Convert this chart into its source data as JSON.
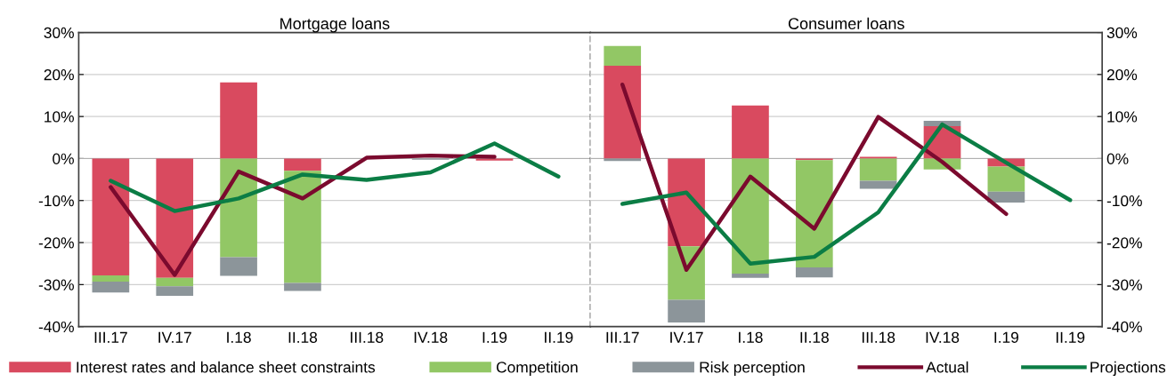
{
  "chart_data": [
    {
      "type": "bar",
      "title": "Mortgage loans",
      "stacked": true,
      "grid": "y",
      "legend": "bottom",
      "marker": "none",
      "line_style": "solid",
      "categories": [
        "III.17",
        "IV.17",
        "I.18",
        "II.18",
        "III.18",
        "IV.18",
        "I.19",
        "II.19"
      ],
      "ylim": [
        -40,
        30
      ],
      "yticks": [
        {
          "value": -40,
          "label": "-40%"
        },
        {
          "value": -30,
          "label": "-30%"
        },
        {
          "value": -20,
          "label": "-20%"
        },
        {
          "value": -10,
          "label": "-10%"
        },
        {
          "value": 0,
          "label": "0%"
        },
        {
          "value": 10,
          "label": "10%"
        },
        {
          "value": 20,
          "label": "20%"
        },
        {
          "value": 30,
          "label": "30%"
        }
      ],
      "series": [
        {
          "name": "Interest rates and balance sheet constraints",
          "color": "#d94a5f",
          "values": [
            -27.8,
            -28.4,
            18.1,
            -2.9,
            null,
            null,
            -0.5,
            null
          ]
        },
        {
          "name": "Competition",
          "color": "#92c765",
          "values": [
            -1.5,
            -2.0,
            -23.5,
            -26.7,
            null,
            null,
            null,
            null
          ]
        },
        {
          "name": "Risk perception",
          "color": "#8c959a",
          "values": [
            -2.6,
            -2.3,
            -4.4,
            -1.9,
            null,
            -0.3,
            null,
            null
          ]
        },
        {
          "name": "Actual",
          "type": "line",
          "color": "#7b0a2e",
          "values": [
            -6.8,
            -27.7,
            -3.1,
            -9.5,
            0.2,
            0.7,
            0.4,
            null
          ]
        },
        {
          "name": "Projections",
          "type": "line",
          "color": "#0b7d45",
          "values": [
            -5.3,
            -12.5,
            -9.5,
            -3.8,
            -5.1,
            -3.3,
            3.6,
            -4.3
          ]
        }
      ]
    },
    {
      "type": "bar",
      "title": "Consumer loans",
      "stacked": true,
      "grid": "y",
      "marker": "none",
      "line_style": "solid",
      "categories": [
        "III.17",
        "IV.17",
        "I.18",
        "II.18",
        "III.18",
        "IV.18",
        "I.19",
        "II.19"
      ],
      "ylim": [
        -40,
        30
      ],
      "yticks": [
        {
          "value": -40,
          "label": "-40%"
        },
        {
          "value": -30,
          "label": "-30%"
        },
        {
          "value": -20,
          "label": "-20%"
        },
        {
          "value": -10,
          "label": "-10%"
        },
        {
          "value": 0,
          "label": "0%"
        },
        {
          "value": 10,
          "label": "10%"
        },
        {
          "value": 20,
          "label": "20%"
        },
        {
          "value": 30,
          "label": "30%"
        }
      ],
      "series": [
        {
          "name": "Interest rates and balance sheet constraints",
          "color": "#d94a5f",
          "values": [
            22.1,
            -20.9,
            12.6,
            -0.4,
            0.4,
            7.7,
            -1.9,
            null
          ]
        },
        {
          "name": "Competition",
          "color": "#92c765",
          "values": [
            4.7,
            -12.7,
            -27.4,
            -25.5,
            -5.3,
            -2.6,
            -6.0,
            null
          ]
        },
        {
          "name": "Risk perception",
          "color": "#8c959a",
          "values": [
            -0.6,
            -5.4,
            -1.0,
            -2.4,
            -1.9,
            1.3,
            -2.6,
            null
          ]
        },
        {
          "name": "Actual",
          "type": "line",
          "color": "#7b0a2e",
          "values": [
            17.6,
            -26.5,
            -4.3,
            -16.7,
            9.9,
            -0.8,
            -13.2,
            null
          ]
        },
        {
          "name": "Projections",
          "type": "line",
          "color": "#0b7d45",
          "values": [
            -10.8,
            -8.1,
            -25.0,
            -23.4,
            -12.8,
            8.1,
            -1.0,
            -9.9
          ]
        }
      ]
    }
  ]
}
